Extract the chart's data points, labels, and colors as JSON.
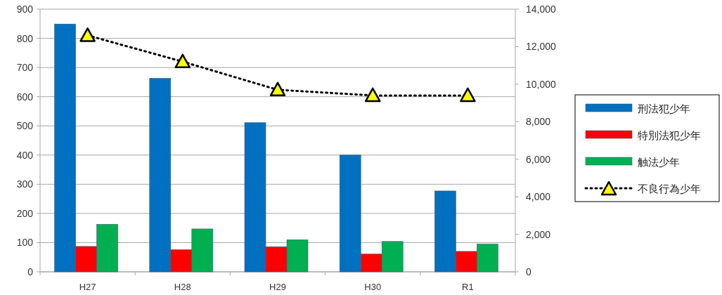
{
  "chart_data": {
    "type": "bar",
    "categories": [
      "H27",
      "H28",
      "H29",
      "H30",
      "R1"
    ],
    "series": [
      {
        "name": "刑法犯少年",
        "color": "#0070c0",
        "values": [
          849,
          663,
          511,
          400,
          277
        ]
      },
      {
        "name": "特別法犯少年",
        "color": "#ff0000",
        "values": [
          87,
          76,
          86,
          61,
          70
        ]
      },
      {
        "name": "触法少年",
        "color": "#00b050",
        "values": [
          163,
          147,
          110,
          104,
          95
        ]
      },
      {
        "name": "不良行為少年",
        "type": "line",
        "axis": "y2",
        "color": "#ffff00",
        "marker": "triangle",
        "line_style": "dotted",
        "values": [
          12600,
          11200,
          9700,
          9400,
          9400
        ]
      }
    ],
    "ylim": [
      0,
      900
    ],
    "yticks": [
      0,
      100,
      200,
      300,
      400,
      500,
      600,
      700,
      800,
      900
    ],
    "y2lim": [
      0,
      14000
    ],
    "y2ticks": [
      0,
      {
        "value": 2000,
        "label": "2,000"
      },
      {
        "value": 4000,
        "label": "4,000"
      },
      {
        "value": 6000,
        "label": "6,000"
      },
      {
        "value": 8000,
        "label": "8,000"
      },
      {
        "value": 10000,
        "label": "10,000"
      },
      {
        "value": 12000,
        "label": "12,000"
      },
      {
        "value": 14000,
        "label": "14,000"
      }
    ],
    "grid": "y",
    "legend": "right"
  }
}
